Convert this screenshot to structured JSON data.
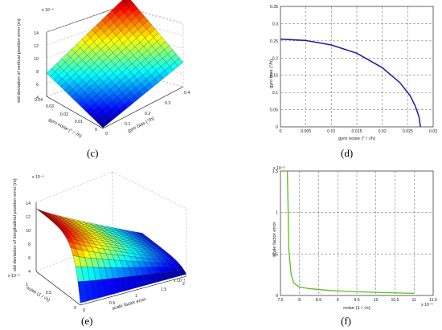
{
  "panel_labels": {
    "c": "(c)",
    "d": "(d)",
    "e": "(e)",
    "f": "(f)"
  },
  "chart_data": [
    {
      "id": "c",
      "type": "surface3d",
      "zlabel": "std deviation of vertical position error (m)",
      "zscale": "x 10⁻⁴",
      "ylabel": "gyro noise (° / √h)",
      "xlabel": "gyro bias (°/h)",
      "zticks": [
        "4",
        "6",
        "8",
        "10",
        "12",
        "14"
      ],
      "yticks": [
        "0.04",
        "0.03",
        "0.02",
        "0.01",
        "0"
      ],
      "xticks": [
        "0",
        "0.1",
        "0.2",
        "0.3",
        "0.4"
      ],
      "z_range": [
        4,
        14
      ],
      "z_corners": {
        "min_bias_min_noise": 4.1,
        "max_bias_min_noise": 7.8,
        "min_bias_max_noise": 7.6,
        "max_bias_max_noise": 13.2
      }
    },
    {
      "id": "d",
      "type": "line",
      "ylabel": "gyro bias (°/h)",
      "xlabel": "gyro noise (° / √h)",
      "xlim": [
        0,
        0.03
      ],
      "ylim": [
        0,
        0.35
      ],
      "xticks": [
        "0",
        "0.005",
        "0.01",
        "0.015",
        "0.02",
        "0.025",
        "0.03"
      ],
      "yticks": [
        "0",
        "0.05",
        "0.1",
        "0.15",
        "0.2",
        "0.25",
        "0.3",
        "0.35"
      ],
      "color": "#1a1aa6",
      "series": [
        {
          "x": [
            0,
            0.005,
            0.01,
            0.015,
            0.02,
            0.0235,
            0.0255,
            0.0265,
            0.0272,
            0.0275
          ],
          "y": [
            0.255,
            0.251,
            0.238,
            0.214,
            0.172,
            0.128,
            0.09,
            0.06,
            0.03,
            0.0
          ]
        }
      ]
    },
    {
      "id": "e",
      "type": "surface3d",
      "zlabel": "std deviation of longitudinal position error (m)",
      "zscale": "x 10⁻⁴",
      "ylabel": "noise (1 / √s)",
      "yscale": "x 10⁻⁵",
      "xlabel": "scale factor error",
      "xscale": "x 10⁻³",
      "zticks": [
        "4",
        "6",
        "8",
        "10",
        "12",
        "14"
      ],
      "yticks": [
        "1",
        "0.5",
        "0"
      ],
      "xticks": [
        "0",
        "0.5",
        "1",
        "1.5",
        "2"
      ],
      "z_range": [
        4,
        14
      ]
    },
    {
      "id": "f",
      "type": "line",
      "ylabel": "scale factor error",
      "yscale": "x 10⁻³",
      "xlabel": "noise (1 / √s)",
      "xscale": "x 10⁻⁶",
      "xlim": [
        7.5,
        11.5
      ],
      "ylim": [
        0,
        1.5
      ],
      "xticks": [
        "7.5",
        "8",
        "8.5",
        "9",
        "9.5",
        "10",
        "10.5",
        "11",
        "11.5"
      ],
      "yticks": [
        "0",
        "0.5",
        "1",
        "1.5"
      ],
      "color": "#55c21f",
      "series": [
        {
          "x": [
            7.68,
            7.72,
            7.78,
            7.85,
            8.0,
            8.3,
            8.8,
            9.5,
            10.2,
            11.0
          ],
          "y": [
            1.5,
            0.55,
            0.25,
            0.15,
            0.1,
            0.08,
            0.06,
            0.045,
            0.035,
            0.025
          ]
        }
      ]
    }
  ]
}
